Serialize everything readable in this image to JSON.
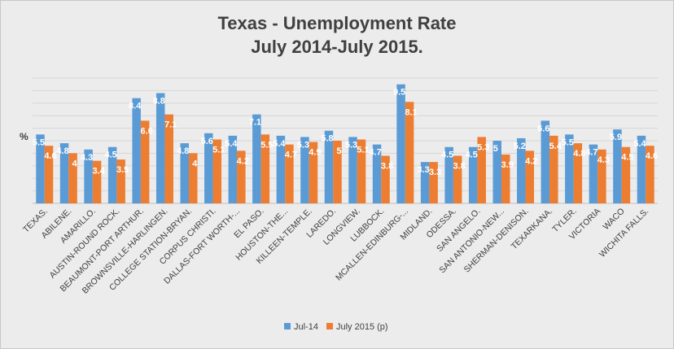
{
  "chart_data": {
    "type": "bar",
    "title_line1": "Texas - Unemployment Rate",
    "title_line2": "July 2014-July 2015.",
    "ylabel": "%",
    "ylim": [
      0,
      10
    ],
    "grid": true,
    "legend_position": "bottom",
    "categories": [
      "TEXAS.",
      "ABILENE.",
      "AMARILLO.",
      "AUSTIN-ROUND ROCK.",
      "BEAUMONT-PORT ARTHUR.",
      "BROWNSVILLE-HARLINGEN.",
      "COLLEGE STATION-BRYAN.",
      "CORPUS CHRISTI.",
      "DALLAS-FORT WORTH-...",
      "EL PASO.",
      "HOUSTON-THE...",
      "KILLEEN-TEMPLE.",
      "LAREDO.",
      "LONGVIEW.",
      "LUBBOCK.",
      "MCALLEN-EDINBURG-...",
      "MIDLAND.",
      "ODESSA.",
      "SAN ANGELO.",
      "SAN ANTONIO-NEW...",
      "SHERMAN-DENISON.",
      "TEXARKANA.",
      "TYLER.",
      "VICTORIA",
      "WACO",
      "WICHITA FALLS."
    ],
    "series": [
      {
        "name": "Jul-14",
        "color": "#5b9bd5",
        "values": [
          5.5,
          4.8,
          4.3,
          4.5,
          8.4,
          8.8,
          4.8,
          5.6,
          5.4,
          7.1,
          5.4,
          5.3,
          5.8,
          5.3,
          4.7,
          9.5,
          3.3,
          4.5,
          4.5,
          5.0,
          5.2,
          6.6,
          5.5,
          4.7,
          5.9,
          5.4
        ]
      },
      {
        "name": "July 2015 (p)",
        "color": "#ed7d31",
        "values": [
          4.6,
          4.0,
          3.4,
          3.5,
          6.6,
          7.1,
          4.0,
          5.1,
          4.2,
          5.5,
          4.7,
          4.9,
          5.0,
          5.1,
          3.8,
          8.1,
          3.3,
          3.8,
          5.3,
          3.9,
          4.2,
          5.4,
          4.8,
          4.3,
          4.5,
          4.6
        ]
      }
    ],
    "data_labels": {
      "Jul-14": [
        "5.5",
        "4.8",
        "4.3",
        "4.5",
        "8.4",
        "8.8",
        "4.8",
        "5.6",
        "5.4",
        "7.1",
        "5.4",
        "5.3",
        "5.8",
        "5.3",
        "4.7",
        "9.5",
        "3.3",
        "4.5",
        "4.5",
        "5",
        "5.2",
        "6.6",
        "5.5",
        "4.7",
        "5.9",
        "5.4"
      ],
      "July 2015 (p)": [
        "4.6",
        "4",
        "3.4",
        "3.5",
        "6.6",
        "7.1",
        "4",
        "5.1",
        "4.2",
        "5.5",
        "4.7",
        "4.9",
        "5",
        "5.1",
        "3.8",
        "8.1",
        "3.3",
        "3.8",
        "5.3",
        "3.9",
        "4.2",
        "5.4",
        "4.8",
        "4.3",
        "4.5",
        "4.6"
      ]
    }
  }
}
